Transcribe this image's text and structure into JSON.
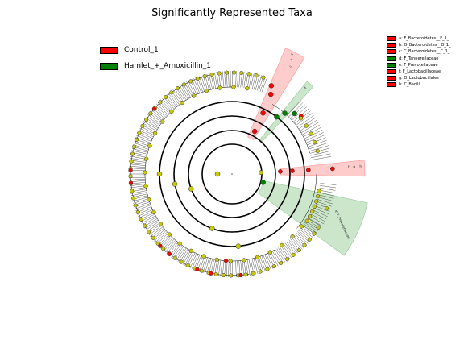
{
  "title": "Significantly Represented Taxa",
  "colors": {
    "Control_1": "#ff0000",
    "Hamlet": "#008000",
    "neutral": "#c8c80a"
  },
  "legend_groups": [
    {
      "label": "Control_1",
      "color": "#ff0000"
    },
    {
      "label": "Hamlet_+_Amoxicillin_1",
      "color": "#008000"
    }
  ],
  "legend_taxa": [
    {
      "label": "a: F_Bacteroidetes__F_1_",
      "color": "#ff0000"
    },
    {
      "label": "b: O_Bacteroidetes__O_1_",
      "color": "#ff0000"
    },
    {
      "label": "c: C_Bacteroidetes__C_1_",
      "color": "#ff0000"
    },
    {
      "label": "d: F_Tannerellaceae",
      "color": "#008000"
    },
    {
      "label": "e: F_Prevotellaceae",
      "color": "#008000"
    },
    {
      "label": "f: F_Lactobacillaceae",
      "color": "#ff0000"
    },
    {
      "label": "g: O_Lactobacillales",
      "color": "#ff0000"
    },
    {
      "label": "h: C_Bacilli",
      "color": "#ff0000"
    }
  ],
  "highlights": [
    {
      "id": "bacteroidetes-clade",
      "color": "#ff0000",
      "labels": [
        "a",
        "b",
        "c"
      ]
    },
    {
      "id": "tannerellaceae-clade",
      "color": "#008000",
      "labels": [
        "d"
      ]
    },
    {
      "id": "lactobacillales-clade",
      "color": "#ff0000",
      "labels": [
        "f",
        "g",
        "h"
      ]
    },
    {
      "id": "prevotellaceae-clade",
      "color": "#008000",
      "labels": [
        "e: F_Prevotellaceae"
      ]
    }
  ]
}
